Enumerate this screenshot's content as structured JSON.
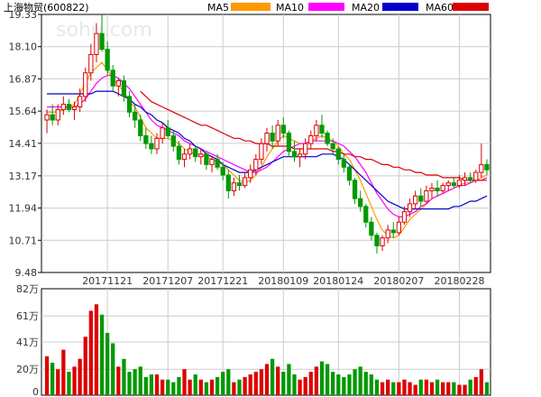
{
  "title": "上海物贸",
  "code": "(600822)",
  "watermark": "sohu.com",
  "legend": [
    {
      "label": "MA5",
      "color": "#ff9900"
    },
    {
      "label": "MA10",
      "color": "#ff00ff"
    },
    {
      "label": "MA20",
      "color": "#0000cc"
    },
    {
      "label": "MA60",
      "color": "#dd0000"
    }
  ],
  "colors": {
    "up": "#dd0000",
    "down": "#009900",
    "grid": "#cccccc",
    "frame": "#000000"
  },
  "chart_data": {
    "type": "candlestick",
    "title": "上海物贸(600822)",
    "price_axis": {
      "ticks": [
        "19.33",
        "18.10",
        "16.87",
        "15.64",
        "14.41",
        "13.17",
        "11.94",
        "10.71",
        "9.48"
      ],
      "ylim": [
        9.48,
        19.33
      ]
    },
    "volume_axis": {
      "ticks": [
        "82万",
        "61万",
        "41万",
        "20万",
        "0"
      ],
      "ylim": [
        0,
        82
      ],
      "unit": "万"
    },
    "date_labels": [
      {
        "index": 11,
        "label": "20171121"
      },
      {
        "index": 22,
        "label": "20171207"
      },
      {
        "index": 32,
        "label": "20171221"
      },
      {
        "index": 43,
        "label": "20180109"
      },
      {
        "index": 53,
        "label": "20180124"
      },
      {
        "index": 64,
        "label": "20180207"
      },
      {
        "index": 75,
        "label": "20180228"
      }
    ],
    "ohlc": [
      [
        15.3,
        15.7,
        14.8,
        15.5
      ],
      [
        15.5,
        15.9,
        15.1,
        15.3
      ],
      [
        15.3,
        15.9,
        15.1,
        15.7
      ],
      [
        15.7,
        16.2,
        15.5,
        15.9
      ],
      [
        15.9,
        16.1,
        15.6,
        15.7
      ],
      [
        15.7,
        16.0,
        15.3,
        15.8
      ],
      [
        15.8,
        16.5,
        15.6,
        16.2
      ],
      [
        16.2,
        17.3,
        16.0,
        17.1
      ],
      [
        17.1,
        18.2,
        16.8,
        17.8
      ],
      [
        17.8,
        19.0,
        17.5,
        18.6
      ],
      [
        18.6,
        19.3,
        17.9,
        18.0
      ],
      [
        18.0,
        18.3,
        17.0,
        17.2
      ],
      [
        17.2,
        17.4,
        16.4,
        16.6
      ],
      [
        16.6,
        16.9,
        16.2,
        16.8
      ],
      [
        16.8,
        17.0,
        16.0,
        16.2
      ],
      [
        16.2,
        16.4,
        15.4,
        15.6
      ],
      [
        15.6,
        15.9,
        15.0,
        15.3
      ],
      [
        15.3,
        15.5,
        14.5,
        14.7
      ],
      [
        14.7,
        15.0,
        14.2,
        14.4
      ],
      [
        14.4,
        14.7,
        14.0,
        14.2
      ],
      [
        14.2,
        14.8,
        14.0,
        14.6
      ],
      [
        14.6,
        15.2,
        14.4,
        15.0
      ],
      [
        15.0,
        15.3,
        14.6,
        14.7
      ],
      [
        14.7,
        14.9,
        14.1,
        14.3
      ],
      [
        14.3,
        14.5,
        13.6,
        13.8
      ],
      [
        13.8,
        14.2,
        13.5,
        14.0
      ],
      [
        14.0,
        14.4,
        13.8,
        14.2
      ],
      [
        14.2,
        14.3,
        13.7,
        13.9
      ],
      [
        13.9,
        14.2,
        13.6,
        14.0
      ],
      [
        14.0,
        14.1,
        13.4,
        13.6
      ],
      [
        13.6,
        13.9,
        13.3,
        13.8
      ],
      [
        13.8,
        14.0,
        13.4,
        13.5
      ],
      [
        13.5,
        13.7,
        13.0,
        13.2
      ],
      [
        13.2,
        13.4,
        12.3,
        12.6
      ],
      [
        12.6,
        13.1,
        12.4,
        12.9
      ],
      [
        12.9,
        13.2,
        12.6,
        12.8
      ],
      [
        12.8,
        13.3,
        12.7,
        13.1
      ],
      [
        13.1,
        13.6,
        12.9,
        13.4
      ],
      [
        13.4,
        14.0,
        13.2,
        13.8
      ],
      [
        13.8,
        14.6,
        13.6,
        14.4
      ],
      [
        14.4,
        15.0,
        14.1,
        14.8
      ],
      [
        14.8,
        15.1,
        14.2,
        14.5
      ],
      [
        14.5,
        15.3,
        14.3,
        15.1
      ],
      [
        15.1,
        15.4,
        14.6,
        14.8
      ],
      [
        14.8,
        14.9,
        13.9,
        14.1
      ],
      [
        14.1,
        14.5,
        13.7,
        13.9
      ],
      [
        13.9,
        14.2,
        13.5,
        14.0
      ],
      [
        14.0,
        14.6,
        13.8,
        14.4
      ],
      [
        14.4,
        14.9,
        14.2,
        14.7
      ],
      [
        14.7,
        15.3,
        14.5,
        15.1
      ],
      [
        15.1,
        15.5,
        14.6,
        14.8
      ],
      [
        14.8,
        14.9,
        14.3,
        14.4
      ],
      [
        14.4,
        14.6,
        14.0,
        14.2
      ],
      [
        14.2,
        14.3,
        13.6,
        13.8
      ],
      [
        13.8,
        14.0,
        13.3,
        13.5
      ],
      [
        13.5,
        13.6,
        12.8,
        13.0
      ],
      [
        13.0,
        13.1,
        12.1,
        12.3
      ],
      [
        12.3,
        12.6,
        11.8,
        12.0
      ],
      [
        12.0,
        12.1,
        11.2,
        11.4
      ],
      [
        11.4,
        11.6,
        10.7,
        10.9
      ],
      [
        10.9,
        11.0,
        10.2,
        10.5
      ],
      [
        10.5,
        10.9,
        10.3,
        10.8
      ],
      [
        10.8,
        11.3,
        10.6,
        11.1
      ],
      [
        11.1,
        11.4,
        10.8,
        11.0
      ],
      [
        11.0,
        11.6,
        10.9,
        11.4
      ],
      [
        11.4,
        12.0,
        11.3,
        11.8
      ],
      [
        11.8,
        12.3,
        11.6,
        12.1
      ],
      [
        12.1,
        12.6,
        11.9,
        12.4
      ],
      [
        12.4,
        12.7,
        12.0,
        12.2
      ],
      [
        12.2,
        12.8,
        12.1,
        12.6
      ],
      [
        12.6,
        12.9,
        12.3,
        12.7
      ],
      [
        12.7,
        13.0,
        12.4,
        12.6
      ],
      [
        12.6,
        12.9,
        12.5,
        12.8
      ],
      [
        12.8,
        13.0,
        12.6,
        12.9
      ],
      [
        12.9,
        13.1,
        12.7,
        12.8
      ],
      [
        12.8,
        13.2,
        12.7,
        13.0
      ],
      [
        13.0,
        13.3,
        12.8,
        13.1
      ],
      [
        13.1,
        13.3,
        12.9,
        13.0
      ],
      [
        13.0,
        13.4,
        12.9,
        13.3
      ],
      [
        13.3,
        14.4,
        13.1,
        13.6
      ],
      [
        13.6,
        13.8,
        13.2,
        13.4
      ]
    ],
    "volume": [
      30,
      25,
      20,
      35,
      18,
      22,
      28,
      45,
      65,
      70,
      62,
      48,
      40,
      22,
      28,
      18,
      20,
      22,
      14,
      16,
      16,
      12,
      12,
      10,
      14,
      20,
      12,
      16,
      12,
      10,
      12,
      14,
      18,
      20,
      10,
      12,
      14,
      16,
      18,
      20,
      24,
      28,
      22,
      18,
      24,
      16,
      12,
      14,
      18,
      22,
      26,
      24,
      18,
      16,
      14,
      16,
      20,
      22,
      18,
      16,
      12,
      10,
      12,
      10,
      10,
      12,
      10,
      8,
      12,
      12,
      10,
      12,
      10,
      10,
      10,
      8,
      8,
      12,
      14,
      20,
      10
    ],
    "ma": {
      "MA5": [
        15.6,
        15.6,
        15.6,
        15.7,
        15.8,
        15.9,
        16.3,
        16.7,
        17.1,
        17.3,
        17.5,
        17.2,
        16.9,
        16.6,
        16.4,
        16.0,
        15.8,
        15.4,
        15.0,
        14.8,
        14.6,
        14.6,
        14.6,
        14.5,
        14.4,
        14.2,
        14.1,
        14.0,
        14.0,
        13.9,
        13.8,
        13.7,
        13.6,
        13.4,
        13.2,
        13.0,
        12.9,
        13.0,
        13.2,
        13.5,
        13.9,
        14.2,
        14.5,
        14.7,
        14.6,
        14.5,
        14.4,
        14.4,
        14.5,
        14.6,
        14.7,
        14.6,
        14.5,
        14.3,
        14.0,
        13.8,
        13.4,
        13.0,
        12.5,
        12.0,
        11.5,
        11.1,
        10.9,
        10.8,
        10.9,
        11.2,
        11.5,
        11.7,
        11.9,
        12.1,
        12.3,
        12.4,
        12.5,
        12.6,
        12.7,
        12.8,
        12.9,
        12.9,
        13.0,
        13.1,
        13.2
      ],
      "MA10": [
        15.8,
        15.8,
        15.8,
        15.8,
        15.8,
        15.8,
        15.9,
        16.1,
        16.4,
        16.7,
        16.9,
        17.0,
        17.0,
        16.9,
        16.7,
        16.5,
        16.2,
        15.9,
        15.6,
        15.3,
        15.1,
        15.0,
        14.9,
        14.8,
        14.7,
        14.5,
        14.4,
        14.3,
        14.2,
        14.1,
        14.0,
        13.9,
        13.8,
        13.7,
        13.6,
        13.5,
        13.4,
        13.3,
        13.3,
        13.4,
        13.5,
        13.7,
        13.9,
        14.1,
        14.2,
        14.3,
        14.4,
        14.4,
        14.5,
        14.5,
        14.5,
        14.5,
        14.5,
        14.4,
        14.3,
        14.1,
        13.9,
        13.6,
        13.3,
        12.9,
        12.5,
        12.2,
        11.9,
        11.7,
        11.6,
        11.6,
        11.7,
        11.8,
        12.0,
        12.1,
        12.3,
        12.4,
        12.5,
        12.6,
        12.7,
        12.8,
        12.8,
        12.9,
        13.0,
        13.0,
        13.1
      ],
      "MA20": [
        16.3,
        16.3,
        16.3,
        16.3,
        16.3,
        16.3,
        16.3,
        16.3,
        16.3,
        16.4,
        16.4,
        16.4,
        16.4,
        16.3,
        16.2,
        16.1,
        15.9,
        15.8,
        15.6,
        15.5,
        15.3,
        15.2,
        15.0,
        14.9,
        14.8,
        14.6,
        14.5,
        14.3,
        14.2,
        14.0,
        13.9,
        13.8,
        13.6,
        13.5,
        13.4,
        13.3,
        13.3,
        13.3,
        13.4,
        13.5,
        13.6,
        13.7,
        13.8,
        13.9,
        13.9,
        13.9,
        13.9,
        13.9,
        13.9,
        13.9,
        14.0,
        14.0,
        14.0,
        13.9,
        13.8,
        13.6,
        13.4,
        13.2,
        13.0,
        12.8,
        12.6,
        12.4,
        12.2,
        12.1,
        12.0,
        11.9,
        11.9,
        11.9,
        11.9,
        11.9,
        11.9,
        11.9,
        11.9,
        11.9,
        12.0,
        12.0,
        12.1,
        12.2,
        12.2,
        12.3,
        12.4
      ],
      "MA60": [
        null,
        null,
        null,
        null,
        null,
        null,
        null,
        null,
        null,
        null,
        null,
        null,
        null,
        null,
        null,
        null,
        null,
        16.4,
        16.2,
        16.0,
        15.9,
        15.8,
        15.7,
        15.6,
        15.5,
        15.4,
        15.3,
        15.2,
        15.1,
        15.1,
        15.0,
        14.9,
        14.8,
        14.7,
        14.6,
        14.6,
        14.5,
        14.5,
        14.4,
        14.4,
        14.4,
        14.3,
        14.3,
        14.3,
        14.3,
        14.2,
        14.2,
        14.2,
        14.2,
        14.2,
        14.2,
        14.2,
        14.1,
        14.1,
        14.0,
        14.0,
        13.9,
        13.9,
        13.8,
        13.8,
        13.7,
        13.6,
        13.6,
        13.5,
        13.5,
        13.4,
        13.4,
        13.3,
        13.3,
        13.2,
        13.2,
        13.2,
        13.1,
        13.1,
        13.1,
        13.1,
        13.0,
        13.0,
        13.0,
        13.0,
        13.0
      ]
    }
  }
}
